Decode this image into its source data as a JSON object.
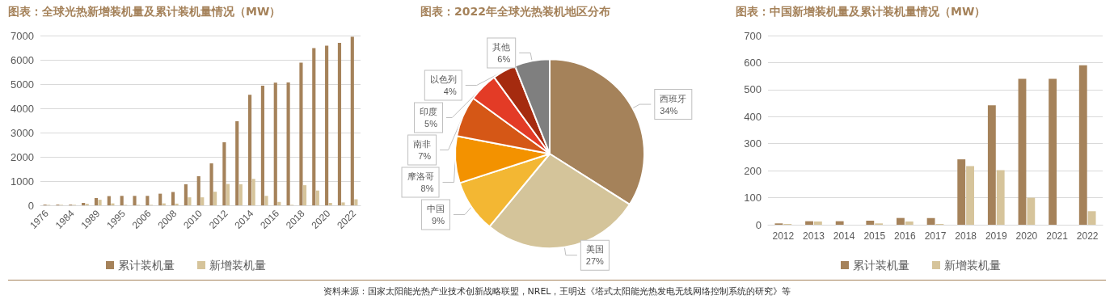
{
  "chart_data": [
    {
      "type": "bar",
      "title": "图表：全球光热新增装机量及累计装机量情况（MW）",
      "categories": [
        "1976",
        null,
        "1984",
        null,
        "1989",
        null,
        "1995",
        null,
        "2006",
        null,
        "2008",
        null,
        "2010",
        null,
        "2012",
        null,
        "2014",
        null,
        "2016",
        null,
        "2018",
        null,
        "2020",
        null,
        "2022"
      ],
      "series": [
        {
          "name": "累计装机量",
          "color": "#a5825a",
          "values": [
            30,
            30,
            30,
            100,
            300,
            380,
            390,
            390,
            390,
            480,
            550,
            870,
            1200,
            1730,
            2600,
            3470,
            4560,
            4930,
            5060,
            5070,
            5880,
            6480,
            6580,
            6700,
            6950
          ]
        },
        {
          "name": "新增装机量",
          "color": "#d6c49b",
          "values": [
            20,
            20,
            20,
            60,
            230,
            80,
            20,
            20,
            20,
            80,
            70,
            330,
            330,
            560,
            880,
            870,
            1090,
            390,
            140,
            20,
            830,
            610,
            100,
            120,
            250
          ]
        }
      ],
      "ylim": [
        0,
        7000
      ],
      "yticks": [
        0,
        1000,
        2000,
        3000,
        4000,
        5000,
        6000,
        7000
      ],
      "grid": "y",
      "legend": "bottom"
    },
    {
      "type": "pie",
      "title": "图表：2022年全球光热装机地区分布",
      "categories": [
        "西班牙",
        "美国",
        "中国",
        "摩洛哥",
        "南非",
        "印度",
        "以色列",
        "其他"
      ],
      "values": [
        34,
        27,
        9,
        8,
        7,
        5,
        4,
        6
      ],
      "colors": [
        "#a5825a",
        "#d4c49a",
        "#f3b733",
        "#f39200",
        "#d55716",
        "#e33b26",
        "#a52b0f",
        "#7f7f7f"
      ],
      "value_labels": [
        "34%",
        "27%",
        "9%",
        "8%",
        "7%",
        "5%",
        "4%",
        "6%"
      ]
    },
    {
      "type": "bar",
      "title": "图表：中国新增装机量及累计装机量情况（MW）",
      "categories": [
        "2012",
        "2013",
        "2014",
        "2015",
        "2016",
        "2017",
        "2018",
        "2019",
        "2020",
        "2021",
        "2022"
      ],
      "series": [
        {
          "name": "累计装机量",
          "color": "#a5825a",
          "values": [
            5,
            13,
            13,
            15,
            25,
            25,
            242,
            442,
            540,
            540,
            590
          ]
        },
        {
          "name": "新增装机量",
          "color": "#d6c49b",
          "values": [
            3,
            12,
            0,
            5,
            12,
            3,
            217,
            202,
            100,
            0,
            50
          ]
        }
      ],
      "ylim": [
        0,
        700
      ],
      "yticks": [
        0,
        100,
        200,
        300,
        400,
        500,
        600,
        700
      ],
      "grid": "y",
      "legend": "bottom",
      "annotations": [
        "资料来源：国家太阳能光热产业技术创新战略联盟，NREL，王明达《塔式太阳能光热发电无线网络控制系统的研究》等"
      ]
    }
  ]
}
